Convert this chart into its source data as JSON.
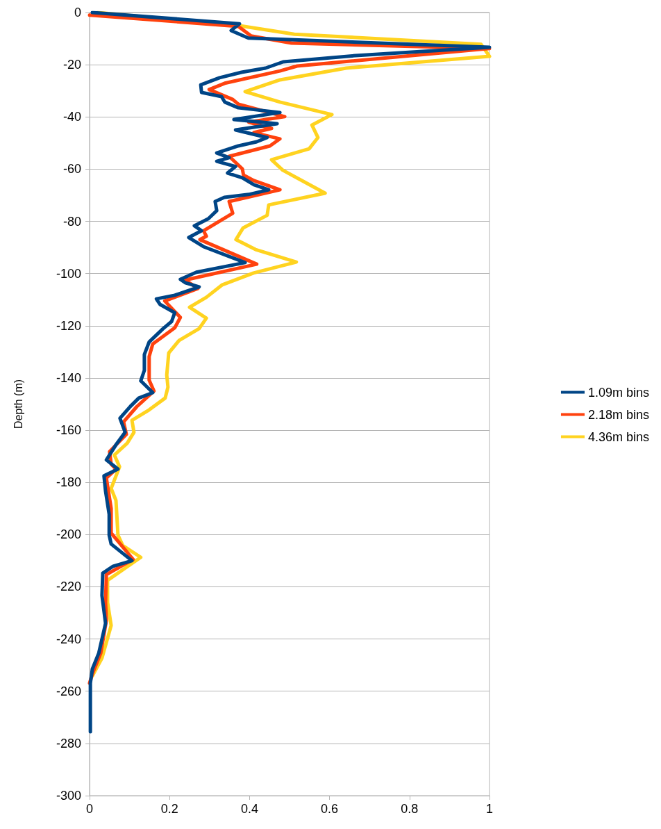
{
  "chart_data": {
    "type": "line",
    "ylabel": "Depth (m)",
    "xlim": [
      0,
      1
    ],
    "xticks": [
      0,
      0.2,
      0.4,
      0.6,
      0.8,
      1
    ],
    "ylim": [
      -300,
      0
    ],
    "yticks": [
      -300,
      -280,
      -260,
      -240,
      -220,
      -200,
      -180,
      -160,
      -140,
      -120,
      -100,
      -80,
      -60,
      -40,
      -20,
      0
    ],
    "grid": "y",
    "legend": "right",
    "marker": "none",
    "line_style": "solid",
    "series": [
      {
        "name": "1.09m bins",
        "color": "#004586",
        "x": [
          0.007,
          0.375,
          0.354,
          0.397,
          1.0,
          0.665,
          0.484,
          0.44,
          0.38,
          0.325,
          0.278,
          0.28,
          0.33,
          0.338,
          0.372,
          0.476,
          0.361,
          0.469,
          0.365,
          0.444,
          0.418,
          0.372,
          0.318,
          0.349,
          0.318,
          0.365,
          0.345,
          0.382,
          0.411,
          0.448,
          0.398,
          0.337,
          0.314,
          0.318,
          0.297,
          0.262,
          0.28,
          0.248,
          0.285,
          0.389,
          0.267,
          0.227,
          0.239,
          0.274,
          0.213,
          0.167,
          0.176,
          0.213,
          0.205,
          0.184,
          0.149,
          0.137,
          0.137,
          0.128,
          0.158,
          0.123,
          0.102,
          0.076,
          0.089,
          0.066,
          0.042,
          0.071,
          0.036,
          0.04,
          0.049,
          0.049,
          0.054,
          0.106,
          0.059,
          0.033,
          0.031,
          0.04,
          0.023,
          0.007,
          0.002,
          0.002
        ],
        "values": [
          0,
          -4.3,
          -6.9,
          -9.8,
          -13.3,
          -16.5,
          -18.9,
          -21.3,
          -22.9,
          -25,
          -27.7,
          -30.6,
          -32.2,
          -34.3,
          -36.5,
          -38.3,
          -41,
          -42.6,
          -45,
          -47.9,
          -49.5,
          -51.1,
          -53.8,
          -55.6,
          -57,
          -59,
          -61.5,
          -63.3,
          -66,
          -67.9,
          -69.7,
          -70.8,
          -72.4,
          -75.9,
          -79,
          -81.7,
          -83.6,
          -86.2,
          -89.7,
          -95.8,
          -99.5,
          -102.2,
          -103.5,
          -105.1,
          -108.3,
          -109.7,
          -111.8,
          -115,
          -118.4,
          -121.1,
          -126.2,
          -131,
          -137.1,
          -141.1,
          -145.6,
          -147.7,
          -150.9,
          -155.4,
          -160.8,
          -165.6,
          -171.4,
          -174.9,
          -177.5,
          -183.4,
          -192.2,
          -200.2,
          -203.6,
          -210,
          -212.1,
          -214.8,
          -223.3,
          -234,
          -245.4,
          -251.5,
          -256.9,
          -275.5
        ]
      },
      {
        "name": "2.18m bins",
        "color": "#ff420e",
        "x": [
          0,
          0.372,
          0.404,
          0.505,
          1.0,
          0.519,
          0.476,
          0.338,
          0.299,
          0.358,
          0.372,
          0.488,
          0.398,
          0.455,
          0.411,
          0.476,
          0.451,
          0.349,
          0.382,
          0.385,
          0.411,
          0.476,
          0.349,
          0.358,
          0.285,
          0.292,
          0.276,
          0.418,
          0.239,
          0.271,
          0.188,
          0.227,
          0.213,
          0.158,
          0.149,
          0.149,
          0.161,
          0.118,
          0.085,
          0.092,
          0.05,
          0.054,
          0.066,
          0.042,
          0.054,
          0.054,
          0.109,
          0.042,
          0.04,
          0.042,
          0.028,
          0.007,
          0
        ],
        "values": [
          -1,
          -5.3,
          -9,
          -11.7,
          -13.8,
          -20.5,
          -22.4,
          -27.1,
          -29.5,
          -33.3,
          -35.1,
          -39.9,
          -42,
          -44.4,
          -46,
          -48.4,
          -51.1,
          -55.1,
          -59.9,
          -62.3,
          -64.4,
          -67.9,
          -72.4,
          -76.9,
          -83.6,
          -85.7,
          -87,
          -96.4,
          -102.5,
          -105.7,
          -110.5,
          -116.8,
          -120.8,
          -127,
          -131.8,
          -140.8,
          -145,
          -151,
          -156.8,
          -161.6,
          -168.2,
          -173,
          -174.9,
          -178.3,
          -190,
          -199.4,
          -209.5,
          -215.3,
          -226,
          -232.9,
          -245.4,
          -253.4,
          -256.9
        ]
      },
      {
        "name": "4.36m bins",
        "color": "#ffd320",
        "x": [
          0.02,
          0.378,
          0.512,
          0.979,
          1.0,
          0.642,
          0.476,
          0.389,
          0.476,
          0.606,
          0.556,
          0.571,
          0.549,
          0.455,
          0.483,
          0.589,
          0.448,
          0.444,
          0.384,
          0.366,
          0.415,
          0.517,
          0.41,
          0.332,
          0.292,
          0.25,
          0.292,
          0.274,
          0.224,
          0.198,
          0.193,
          0.196,
          0.189,
          0.149,
          0.106,
          0.111,
          0.094,
          0.062,
          0.075,
          0.054,
          0.066,
          0.071,
          0.083,
          0.128,
          0.045,
          0.045,
          0.054,
          0.031,
          0.007
        ],
        "values": [
          0,
          -5.1,
          -8.3,
          -12.2,
          -16.8,
          -21.3,
          -25.8,
          -30.3,
          -34.3,
          -39.1,
          -43.1,
          -47.9,
          -52.2,
          -56.4,
          -60.4,
          -69.2,
          -73.7,
          -77.7,
          -82.5,
          -87,
          -90.8,
          -95.6,
          -99.8,
          -104.3,
          -109.1,
          -112.9,
          -117.1,
          -121.1,
          -125.6,
          -130.4,
          -138.9,
          -143.5,
          -147.7,
          -152.2,
          -156.2,
          -160.8,
          -165,
          -169.5,
          -174,
          -182.3,
          -186.9,
          -200.2,
          -204.2,
          -208.7,
          -217.5,
          -226,
          -234.8,
          -247.3,
          -254.2
        ]
      }
    ]
  }
}
